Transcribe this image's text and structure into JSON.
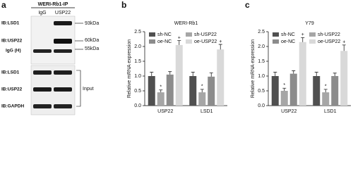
{
  "panel_a": {
    "letter": "a",
    "header": "WERI-Rb1-IP",
    "lanes": [
      "IgG",
      "USP22"
    ],
    "ip_rows": [
      "IB:LSD1",
      "IB:USP22",
      "IgG (H)"
    ],
    "input_rows": [
      "IB:LSD1",
      "IB:USP22",
      "IB:GAPDH"
    ],
    "markers": [
      "93kDa",
      "60kDa",
      "55kDa"
    ],
    "input_label": "Input"
  },
  "chart_data": [
    {
      "type": "bar",
      "letter": "b",
      "title": "WERI-Rb1",
      "y_label": "Relative mRNA expression",
      "categories": [
        "USP22",
        "LSD1"
      ],
      "series": [
        {
          "name": "sh-NC",
          "color": "#505050",
          "values": [
            1.0,
            1.0
          ],
          "errors": [
            0.13,
            0.13
          ]
        },
        {
          "name": "sh-USP22",
          "color": "#a6a6a6",
          "values": [
            0.45,
            0.45
          ],
          "errors": [
            0.08,
            0.1
          ],
          "annotation": "*"
        },
        {
          "name": "oe-NC",
          "color": "#8c8c8c",
          "values": [
            1.05,
            0.98
          ],
          "errors": [
            0.1,
            0.13
          ]
        },
        {
          "name": "oe-USP22",
          "color": "#d9d9d9",
          "values": [
            2.05,
            1.9
          ],
          "errors": [
            0.15,
            0.17
          ],
          "annotation": "+"
        }
      ],
      "ylim": [
        0,
        2.5
      ],
      "yticks": [
        {
          "value": 0,
          "label": "0.0"
        },
        0.5,
        {
          "value": 1,
          "label": "1.0"
        },
        1.5,
        {
          "value": 2,
          "label": "2.0"
        },
        2.5
      ]
    },
    {
      "type": "bar",
      "letter": "c",
      "title": "Y79",
      "y_label": "Relative mRNA expression",
      "categories": [
        "USP22",
        "LSD1"
      ],
      "series": [
        {
          "name": "sh-NC",
          "color": "#505050",
          "values": [
            1.0,
            1.0
          ],
          "errors": [
            0.13,
            0.13
          ]
        },
        {
          "name": "sh-USP22",
          "color": "#a6a6a6",
          "values": [
            0.5,
            0.45
          ],
          "errors": [
            0.09,
            0.1
          ],
          "annotation": "*"
        },
        {
          "name": "oe-NC",
          "color": "#8c8c8c",
          "values": [
            1.08,
            1.0
          ],
          "errors": [
            0.1,
            0.1
          ]
        },
        {
          "name": "oe-USP22",
          "color": "#d9d9d9",
          "values": [
            2.15,
            1.85
          ],
          "errors": [
            0.15,
            0.2
          ],
          "annotation": "+"
        }
      ],
      "ylim": [
        0,
        2.5
      ],
      "yticks": [
        {
          "value": 0,
          "label": "0.0"
        },
        0.5,
        {
          "value": 1,
          "label": "1.0"
        },
        1.5,
        {
          "value": 2,
          "label": "2.0"
        },
        2.5
      ]
    }
  ]
}
